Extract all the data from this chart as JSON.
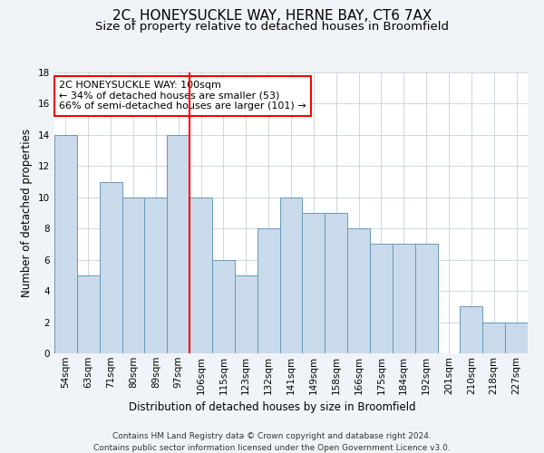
{
  "title": "2C, HONEYSUCKLE WAY, HERNE BAY, CT6 7AX",
  "subtitle": "Size of property relative to detached houses in Broomfield",
  "xlabel": "Distribution of detached houses by size in Broomfield",
  "ylabel": "Number of detached properties",
  "categories": [
    "54sqm",
    "63sqm",
    "71sqm",
    "80sqm",
    "89sqm",
    "97sqm",
    "106sqm",
    "115sqm",
    "123sqm",
    "132sqm",
    "141sqm",
    "149sqm",
    "158sqm",
    "166sqm",
    "175sqm",
    "184sqm",
    "192sqm",
    "201sqm",
    "210sqm",
    "218sqm",
    "227sqm"
  ],
  "values": [
    14,
    5,
    11,
    10,
    10,
    14,
    10,
    6,
    5,
    8,
    10,
    9,
    9,
    8,
    7,
    7,
    7,
    0,
    3,
    2,
    2
  ],
  "bar_color": "#c9daea",
  "bar_edgecolor": "#6699bb",
  "property_bin_index": 5,
  "annotation_line1": "2C HONEYSUCKLE WAY: 100sqm",
  "annotation_line2": "← 34% of detached houses are smaller (53)",
  "annotation_line3": "66% of semi-detached houses are larger (101) →",
  "ylim": [
    0,
    18
  ],
  "yticks": [
    0,
    2,
    4,
    6,
    8,
    10,
    12,
    14,
    16,
    18
  ],
  "footer_line1": "Contains HM Land Registry data © Crown copyright and database right 2024.",
  "footer_line2": "Contains public sector information licensed under the Open Government Licence v3.0.",
  "bg_color": "#f0f4f8",
  "plot_bg_color": "#ffffff",
  "title_fontsize": 11,
  "subtitle_fontsize": 9.5,
  "axis_label_fontsize": 8.5,
  "tick_fontsize": 7.5,
  "footer_fontsize": 6.5,
  "annotation_fontsize": 8
}
